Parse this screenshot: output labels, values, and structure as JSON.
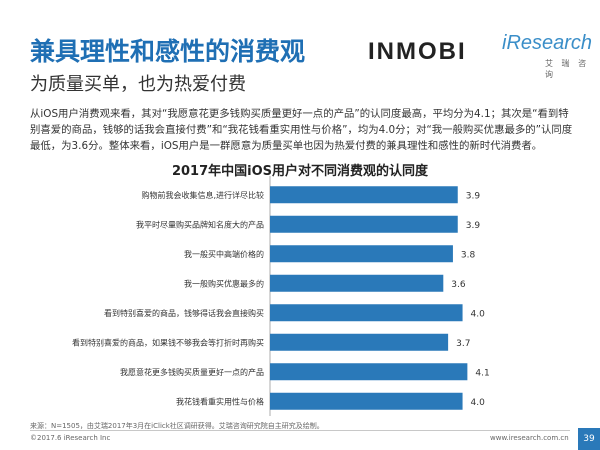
{
  "header": {
    "title": "兼具理性和感性的消费观",
    "subtitle": "为质量买单，也为热爱付费",
    "logo_inmobi": "INMOBI",
    "logo_iresearch": "iResearch",
    "logo_iresearch_cn": "艾 瑞 咨 询"
  },
  "intro_text": "从iOS用户消费观来看，其对“我愿意花更多钱购买质量更好一点的产品”的认同度最高，平均分为4.1；其次是“看到特别喜爱的商品，钱够的话我会直接付费”和“我花钱看重实用性与价格”，均为4.0分；对“我一般购买优惠最多的”认同度最低，为3.6分。整体来看，iOS用户是一群愿意为质量买单也因为热爱付费的兼具理性和感性的新时代消费者。",
  "chart_data": {
    "type": "bar",
    "orientation": "horizontal",
    "title": "2017年中国iOS用户对不同消费观的认同度",
    "categories": [
      "购物前我会收集信息,进行详尽比较",
      "我平时尽量购买品牌知名度大的产品",
      "我一般买中高端价格的",
      "我一般购买优惠最多的",
      "看到特别喜爱的商品，钱够得话我会直接购买",
      "看到特别喜爱的商品，如果钱不够我会等打折时再购买",
      "我愿意花更多钱购买质量更好一点的产品",
      "我花钱看重实用性与价格"
    ],
    "values": [
      3.9,
      3.9,
      3.8,
      3.6,
      4.0,
      3.7,
      4.1,
      4.0
    ],
    "xlim": [
      0,
      5
    ],
    "bar_color": "#2a79b9"
  },
  "footer": {
    "source": "来源：N=1505，由艾瑞2017年3月在iClick社区调研获得。艾瑞咨询研究院自主研究及绘制。",
    "copyright": "©2017.6 iResearch Inc",
    "website": "www.iresearch.com.cn",
    "page": "39"
  }
}
